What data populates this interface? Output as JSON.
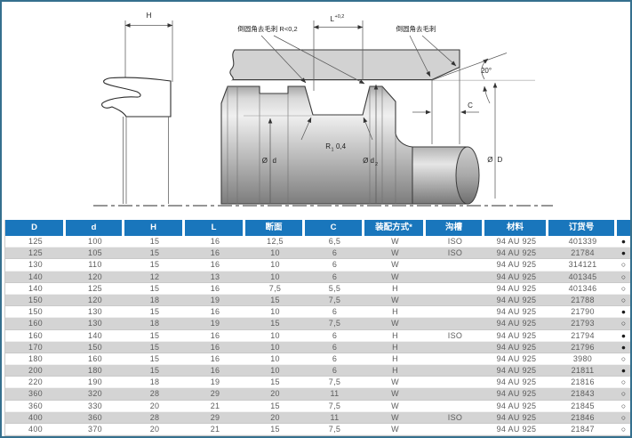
{
  "colors": {
    "header_bg": "#1976bc",
    "row_alt": "#d4d4d4",
    "frame": "#35708e"
  },
  "diagram": {
    "labels": {
      "h": "H",
      "l_base": "L",
      "l_tol": "+0,2",
      "deburr_left": "倒圆角去毛刺  R<0,2",
      "deburr_right": "倒圆角去毛刺",
      "angle_20": "20°",
      "c": "C",
      "dia_d_sym": "Ø",
      "dia_d_letter": "d",
      "dia_d2_base": "Ø d",
      "dia_d2_sub": "2",
      "dia_D_sym": "Ø",
      "dia_D_letter": "D",
      "r1_base": "R",
      "r1_sub": "1",
      "r1_val": "0,4"
    }
  },
  "table": {
    "headers": [
      "D",
      "d",
      "H",
      "L",
      "断面",
      "C",
      "装配方式*",
      "沟槽",
      "材料",
      "订货号",
      ""
    ],
    "rows": [
      [
        "125",
        "100",
        "15",
        "16",
        "12,5",
        "6,5",
        "W",
        "ISO",
        "94 AU 925",
        "401339",
        "●"
      ],
      [
        "125",
        "105",
        "15",
        "16",
        "10",
        "6",
        "W",
        "ISO",
        "94 AU 925",
        "21784",
        "●"
      ],
      [
        "130",
        "110",
        "15",
        "16",
        "10",
        "6",
        "W",
        "",
        "94 AU 925",
        "314121",
        "○"
      ],
      [
        "140",
        "120",
        "12",
        "13",
        "10",
        "6",
        "W",
        "",
        "94 AU 925",
        "401345",
        "○"
      ],
      [
        "140",
        "125",
        "15",
        "16",
        "7,5",
        "5,5",
        "H",
        "",
        "94 AU 925",
        "401346",
        "○"
      ],
      [
        "150",
        "120",
        "18",
        "19",
        "15",
        "7,5",
        "W",
        "",
        "94 AU 925",
        "21788",
        "○"
      ],
      [
        "150",
        "130",
        "15",
        "16",
        "10",
        "6",
        "H",
        "",
        "94 AU 925",
        "21790",
        "●"
      ],
      [
        "160",
        "130",
        "18",
        "19",
        "15",
        "7,5",
        "W",
        "",
        "94 AU 925",
        "21793",
        "○"
      ],
      [
        "160",
        "140",
        "15",
        "16",
        "10",
        "6",
        "H",
        "ISO",
        "94 AU 925",
        "21794",
        "●"
      ],
      [
        "170",
        "150",
        "15",
        "16",
        "10",
        "6",
        "H",
        "",
        "94 AU 925",
        "21796",
        "●"
      ],
      [
        "180",
        "160",
        "15",
        "16",
        "10",
        "6",
        "H",
        "",
        "94 AU 925",
        "3980",
        "○"
      ],
      [
        "200",
        "180",
        "15",
        "16",
        "10",
        "6",
        "H",
        "",
        "94 AU 925",
        "21811",
        "●"
      ],
      [
        "220",
        "190",
        "18",
        "19",
        "15",
        "7,5",
        "W",
        "",
        "94 AU 925",
        "21816",
        "○"
      ],
      [
        "360",
        "320",
        "28",
        "29",
        "20",
        "11",
        "W",
        "",
        "94 AU 925",
        "21843",
        "○"
      ],
      [
        "360",
        "330",
        "20",
        "21",
        "15",
        "7,5",
        "W",
        "",
        "94 AU 925",
        "21845",
        "○"
      ],
      [
        "400",
        "360",
        "28",
        "29",
        "20",
        "11",
        "W",
        "ISO",
        "94 AU 925",
        "21846",
        "○"
      ],
      [
        "400",
        "370",
        "20",
        "21",
        "15",
        "7,5",
        "W",
        "",
        "94 AU 925",
        "21847",
        "○"
      ]
    ]
  }
}
